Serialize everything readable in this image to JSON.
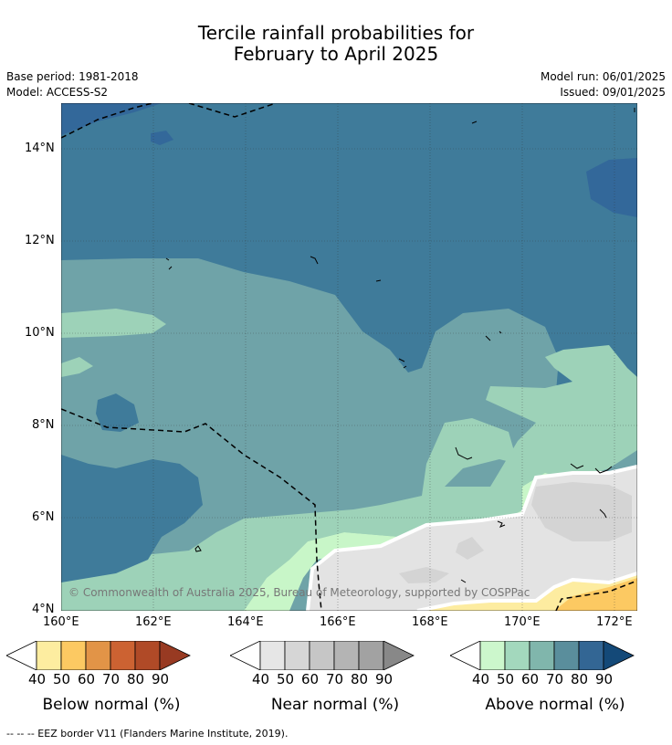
{
  "title_line1": "Tercile rainfall probabilities for",
  "title_line2": "February to April 2025",
  "base_period": "Base period: 1981-2018",
  "model": "Model: ACCESS-S2",
  "model_run": "Model run: 06/01/2025",
  "issued": "Issued: 09/01/2025",
  "lat_labels": [
    "14°N",
    "12°N",
    "10°N",
    "8°N",
    "6°N",
    "4°N"
  ],
  "lon_labels": [
    "160°E",
    "162°E",
    "164°E",
    "166°E",
    "168°E",
    "170°E",
    "172°E"
  ],
  "copyright": "© Commonwealth of Australia 2025, Bureau of Meteorology, supported by COSPPac",
  "colorbars": [
    {
      "title": "Below normal (%)",
      "ticks": [
        "40",
        "50",
        "60",
        "70",
        "80",
        "90"
      ],
      "colors": [
        "#fdeda0",
        "#fcc962",
        "#e29447",
        "#cc6232",
        "#b04a27",
        "#983a22"
      ],
      "low": "#ffffff"
    },
    {
      "title": "Near normal (%)",
      "ticks": [
        "40",
        "50",
        "60",
        "70",
        "80",
        "90"
      ],
      "colors": [
        "#e6e6e6",
        "#d6d6d6",
        "#c6c6c6",
        "#b4b4b4",
        "#a2a2a2",
        "#888888"
      ],
      "low": "#ffffff"
    },
    {
      "title": "Above normal (%)",
      "ticks": [
        "40",
        "50",
        "60",
        "70",
        "80",
        "90"
      ],
      "colors": [
        "#ccf7cc",
        "#a3d8bd",
        "#80b6ac",
        "#5a8e9c",
        "#336694",
        "#144978"
      ],
      "low": "#ffffff"
    }
  ],
  "footer": "-- -- -- EEZ border V11 (Flanders Marine Institute, 2019)."
}
